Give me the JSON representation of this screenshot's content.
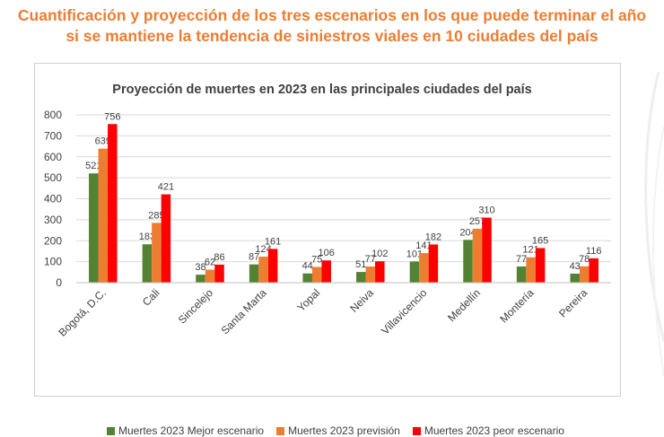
{
  "headline": {
    "line1": "Cuantificación y proyección de los tres escenarios en los que puede terminar el año",
    "line2": "si se mantiene la tendencia de siniestros viales en 10 ciudades del país"
  },
  "colors": {
    "headline": "#ED7D31",
    "series": [
      "#548235",
      "#ED7D31",
      "#FF0000"
    ]
  },
  "chart_data": {
    "type": "bar",
    "title": "Proyección de muertes en 2023 en las principales ciudades del país",
    "xlabel": "",
    "ylabel": "",
    "ylim": [
      0,
      800
    ],
    "yticks": [
      0,
      100,
      200,
      300,
      400,
      500,
      600,
      700,
      800
    ],
    "grid": true,
    "legend_position": "bottom",
    "categories": [
      "Bogotá, D.C.",
      "Cali",
      "Sincelejo",
      "Santa Marta",
      "Yopal",
      "Neiva",
      "Villavicencio",
      "Medellín",
      "Montería",
      "Pereira"
    ],
    "series": [
      {
        "name": "Muertes 2023 Mejor escenario",
        "color": "#548235",
        "values": [
          521,
          183,
          38,
          87,
          44,
          51,
          101,
          204,
          77,
          43
        ]
      },
      {
        "name": "Muertes 2023 previsión",
        "color": "#ED7D31",
        "values": [
          639,
          285,
          62,
          124,
          75,
          77,
          141,
          257,
          121,
          78
        ]
      },
      {
        "name": "Muertes 2023 peor escenario",
        "color": "#FF0000",
        "values": [
          756,
          421,
          86,
          161,
          106,
          102,
          182,
          310,
          165,
          116
        ]
      }
    ]
  }
}
